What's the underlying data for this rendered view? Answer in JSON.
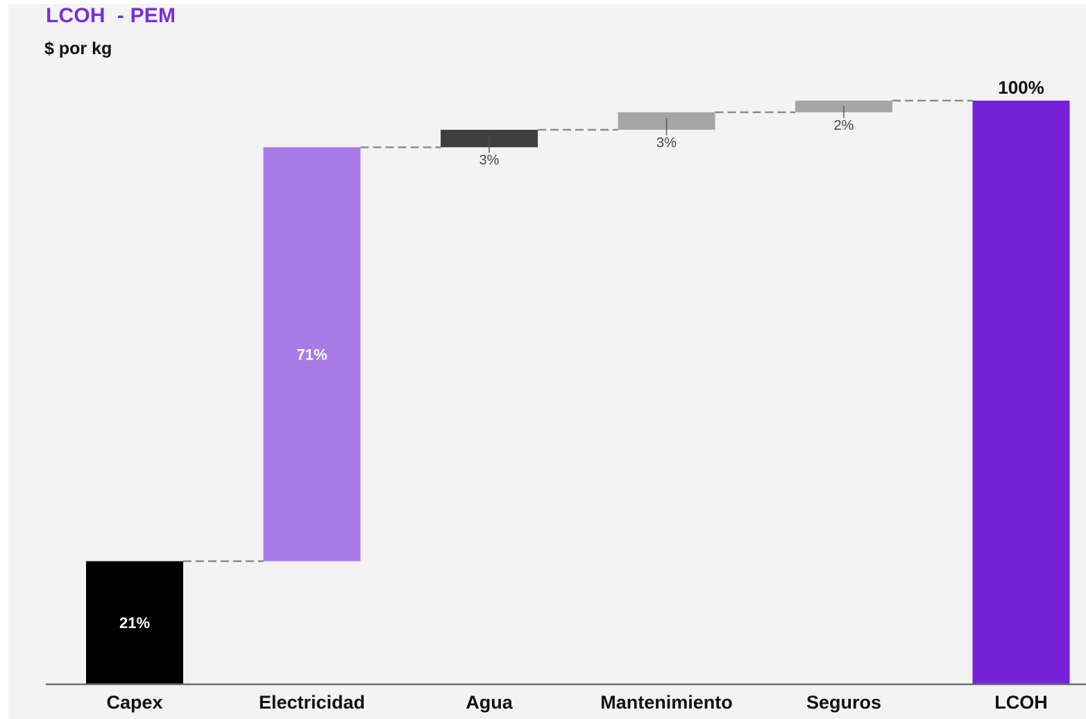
{
  "chart_data": {
    "type": "bar",
    "subtype": "waterfall",
    "title": "LCOH  - PEM",
    "subtitle": "$ por kg",
    "xlabel": "",
    "ylabel": "",
    "ylim": [
      0,
      100
    ],
    "grid": false,
    "legend": "none",
    "categories": [
      "Capex",
      "Electricidad",
      "Agua",
      "Mantenimiento",
      "Seguros",
      "LCOH"
    ],
    "values": [
      21,
      71,
      3,
      3,
      2,
      100
    ],
    "labels": [
      "21%",
      "71%",
      "3%",
      "3%",
      "2%",
      "100%"
    ],
    "is_total": [
      false,
      false,
      false,
      false,
      false,
      true
    ],
    "colors": [
      "#000000",
      "#a87be8",
      "#3f3f3f",
      "#a6a6a6",
      "#a6a6a6",
      "#7522d8"
    ]
  },
  "style": {
    "title_color": "#7b2fd3",
    "background": "#f3f3f3",
    "connector_color": "#8c8c8c",
    "axis_color": "#6e6e6e"
  }
}
